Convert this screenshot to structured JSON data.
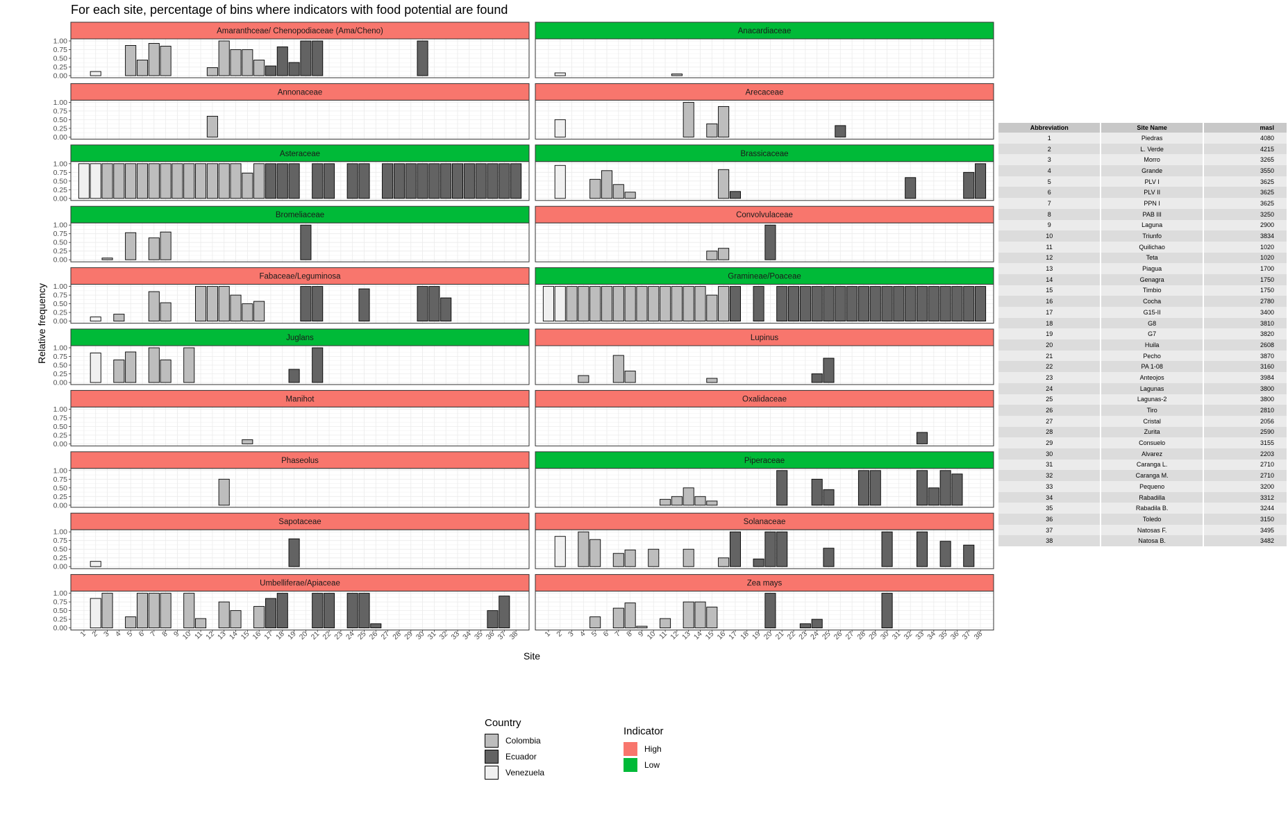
{
  "chart_data": {
    "type": "bar",
    "title": "For each site, percentage of bins where indicators with food potential are found",
    "xlabel": "Site",
    "ylabel": "Relative frequency",
    "ylim": [
      0,
      1
    ],
    "y_ticks": [
      "0.00",
      "0.25",
      "0.50",
      "0.75",
      "1.00"
    ],
    "categories": [
      "1",
      "2",
      "3",
      "4",
      "5",
      "6",
      "7",
      "8",
      "9",
      "10",
      "11",
      "12",
      "13",
      "14",
      "15",
      "16",
      "17",
      "18",
      "19",
      "20",
      "21",
      "22",
      "23",
      "24",
      "25",
      "26",
      "27",
      "28",
      "29",
      "30",
      "31",
      "32",
      "33",
      "34",
      "35",
      "36",
      "37",
      "38"
    ],
    "site_country": [
      "V",
      "V",
      "C",
      "C",
      "C",
      "C",
      "C",
      "C",
      "C",
      "C",
      "C",
      "C",
      "C",
      "C",
      "C",
      "C",
      "E",
      "E",
      "E",
      "E",
      "E",
      "E",
      "E",
      "E",
      "E",
      "E",
      "E",
      "E",
      "E",
      "E",
      "E",
      "E",
      "E",
      "E",
      "E",
      "E",
      "E",
      "E"
    ],
    "country_colors": {
      "C": "#bdbdbd",
      "E": "#636363",
      "V": "#f0f0f0"
    },
    "indicator_colors": {
      "High": "#f8766d",
      "Low": "#00ba38"
    },
    "facets": [
      {
        "name": "Amaranthceae/ Chenopodiaceae (Ama/Cheno)",
        "indicator": "High",
        "values": [
          0,
          0.12,
          0,
          0,
          0.87,
          0.45,
          0.93,
          0.85,
          0,
          0,
          0,
          0.23,
          1,
          0.75,
          0.75,
          0.45,
          0.28,
          0.83,
          0.38,
          1,
          1,
          0,
          0,
          0,
          0,
          0,
          0,
          0,
          0,
          1,
          0,
          0,
          0,
          0,
          0,
          0,
          0,
          0
        ]
      },
      {
        "name": "Anacardiaceae",
        "indicator": "Low",
        "values": [
          0,
          0.08,
          0,
          0,
          0,
          0,
          0,
          0,
          0,
          0,
          0,
          0.05,
          0,
          0,
          0,
          0,
          0,
          0,
          0,
          0,
          0,
          0,
          0,
          0,
          0,
          0,
          0,
          0,
          0,
          0,
          0,
          0,
          0,
          0,
          0,
          0,
          0,
          0
        ]
      },
      {
        "name": "Annonaceae",
        "indicator": "High",
        "values": [
          0,
          0,
          0,
          0,
          0,
          0,
          0,
          0,
          0,
          0,
          0,
          0.6,
          0,
          0,
          0,
          0,
          0,
          0,
          0,
          0,
          0,
          0,
          0,
          0,
          0,
          0,
          0,
          0,
          0,
          0,
          0,
          0,
          0,
          0,
          0,
          0,
          0,
          0
        ]
      },
      {
        "name": "Arecaceae",
        "indicator": "High",
        "values": [
          0,
          0.5,
          0,
          0,
          0,
          0,
          0,
          0,
          0,
          0,
          0,
          0,
          1,
          0,
          0.38,
          0.88,
          0,
          0,
          0,
          0,
          0,
          0,
          0,
          0,
          0,
          0.33,
          0,
          0,
          0,
          0,
          0,
          0,
          0,
          0,
          0,
          0,
          0,
          0
        ]
      },
      {
        "name": "Asteraceae",
        "indicator": "Low",
        "values": [
          1,
          1,
          1,
          1,
          1,
          1,
          1,
          1,
          1,
          1,
          1,
          1,
          1,
          1,
          0.73,
          1,
          1,
          1,
          1,
          0,
          1,
          1,
          0,
          1,
          1,
          0,
          1,
          1,
          1,
          1,
          1,
          1,
          1,
          1,
          1,
          1,
          1,
          1
        ]
      },
      {
        "name": "Brassicaceae",
        "indicator": "Low",
        "values": [
          0,
          0.95,
          0,
          0,
          0.55,
          0.8,
          0.4,
          0.18,
          0,
          0,
          0,
          0,
          0,
          0,
          0,
          0.83,
          0.2,
          0,
          0,
          0,
          0,
          0,
          0,
          0,
          0,
          0,
          0,
          0,
          0,
          0,
          0,
          0.6,
          0,
          0,
          0,
          0,
          0.75,
          1
        ]
      },
      {
        "name": "Bromeliaceae",
        "indicator": "Low",
        "values": [
          0,
          0,
          0.05,
          0,
          0.78,
          0,
          0.63,
          0.8,
          0,
          0,
          0,
          0,
          0,
          0,
          0,
          0,
          0,
          0,
          0,
          1,
          0,
          0,
          0,
          0,
          0,
          0,
          0,
          0,
          0,
          0,
          0,
          0,
          0,
          0,
          0,
          0,
          0,
          0
        ]
      },
      {
        "name": "Convolvulaceae",
        "indicator": "High",
        "values": [
          0,
          0,
          0,
          0,
          0,
          0,
          0,
          0,
          0,
          0,
          0,
          0,
          0,
          0,
          0.25,
          0.33,
          0,
          0,
          0,
          1,
          0,
          0,
          0,
          0,
          0,
          0,
          0,
          0,
          0,
          0,
          0,
          0,
          0,
          0,
          0,
          0,
          0,
          0
        ]
      },
      {
        "name": "Fabaceae/Leguminosa",
        "indicator": "High",
        "values": [
          0,
          0.12,
          0,
          0.2,
          0,
          0,
          0.85,
          0.53,
          0,
          0,
          1,
          1,
          1,
          0.75,
          0.5,
          0.57,
          0,
          0,
          0,
          1,
          1,
          0,
          0,
          0,
          0.93,
          0,
          0,
          0,
          0,
          1,
          1,
          0.67,
          0,
          0,
          0,
          0,
          0,
          0
        ]
      },
      {
        "name": "Gramineae/Poaceae",
        "indicator": "Low",
        "values": [
          1,
          1,
          1,
          1,
          1,
          1,
          1,
          1,
          1,
          1,
          1,
          1,
          1,
          1,
          0.75,
          1,
          1,
          0,
          1,
          0,
          1,
          1,
          1,
          1,
          1,
          1,
          1,
          1,
          1,
          1,
          1,
          1,
          1,
          1,
          1,
          1,
          1,
          1
        ]
      },
      {
        "name": "Juglans",
        "indicator": "Low",
        "values": [
          0,
          0.85,
          0,
          0.65,
          0.88,
          0,
          1,
          0.65,
          0,
          1,
          0,
          0,
          0,
          0,
          0,
          0,
          0,
          0,
          0.38,
          0,
          1,
          0,
          0,
          0,
          0,
          0,
          0,
          0,
          0,
          0,
          0,
          0,
          0,
          0,
          0,
          0,
          0,
          0
        ]
      },
      {
        "name": "Lupinus",
        "indicator": "High",
        "values": [
          0,
          0,
          0,
          0.2,
          0,
          0,
          0.78,
          0.33,
          0,
          0,
          0,
          0,
          0,
          0,
          0.12,
          0,
          0,
          0,
          0,
          0,
          0,
          0,
          0,
          0.25,
          0.7,
          0,
          0,
          0,
          0,
          0,
          0,
          0,
          0,
          0,
          0,
          0,
          0,
          0
        ]
      },
      {
        "name": "Manihot",
        "indicator": "High",
        "values": [
          0,
          0,
          0,
          0,
          0,
          0,
          0,
          0,
          0,
          0,
          0,
          0,
          0,
          0,
          0.12,
          0,
          0,
          0,
          0,
          0,
          0,
          0,
          0,
          0,
          0,
          0,
          0,
          0,
          0,
          0,
          0,
          0,
          0,
          0,
          0,
          0,
          0,
          0
        ]
      },
      {
        "name": "Oxalidaceae",
        "indicator": "High",
        "values": [
          0,
          0,
          0,
          0,
          0,
          0,
          0,
          0,
          0,
          0,
          0,
          0,
          0,
          0,
          0,
          0,
          0,
          0,
          0,
          0,
          0,
          0,
          0,
          0,
          0,
          0,
          0,
          0,
          0,
          0,
          0,
          0,
          0.33,
          0,
          0,
          0,
          0,
          0
        ]
      },
      {
        "name": "Phaseolus",
        "indicator": "High",
        "values": [
          0,
          0,
          0,
          0,
          0,
          0,
          0,
          0,
          0,
          0,
          0,
          0,
          0.75,
          0,
          0,
          0,
          0,
          0,
          0,
          0,
          0,
          0,
          0,
          0,
          0,
          0,
          0,
          0,
          0,
          0,
          0,
          0,
          0,
          0,
          0,
          0,
          0,
          0
        ]
      },
      {
        "name": "Piperaceae",
        "indicator": "Low",
        "values": [
          0,
          0,
          0,
          0,
          0,
          0,
          0,
          0,
          0,
          0,
          0.17,
          0.25,
          0.5,
          0.25,
          0.12,
          0,
          0,
          0,
          0,
          0,
          1,
          0,
          0,
          0.75,
          0.45,
          0,
          0,
          1,
          1,
          0,
          0,
          0,
          1,
          0.5,
          1,
          0.9,
          0,
          0
        ]
      },
      {
        "name": "Sapotaceae",
        "indicator": "High",
        "values": [
          0,
          0.15,
          0,
          0,
          0,
          0,
          0,
          0,
          0,
          0,
          0,
          0,
          0,
          0,
          0,
          0,
          0,
          0,
          0.8,
          0,
          0,
          0,
          0,
          0,
          0,
          0,
          0,
          0,
          0,
          0,
          0,
          0,
          0,
          0,
          0,
          0,
          0,
          0
        ]
      },
      {
        "name": "Solanaceae",
        "indicator": "High",
        "values": [
          0,
          0.87,
          0,
          1,
          0.78,
          0,
          0.38,
          0.48,
          0,
          0.5,
          0,
          0,
          0.5,
          0,
          0,
          0.25,
          1,
          0,
          0.22,
          1,
          1,
          0,
          0,
          0,
          0.53,
          0,
          0,
          0,
          0,
          1,
          0,
          0,
          1,
          0,
          0.73,
          0,
          0.62,
          0
        ]
      },
      {
        "name": "Umbelliferae/Apiaceae",
        "indicator": "High",
        "values": [
          0,
          0.85,
          1,
          0,
          0.32,
          1,
          1,
          1,
          0,
          1,
          0.27,
          0,
          0.75,
          0.5,
          0,
          0.62,
          0.85,
          1,
          0,
          0,
          1,
          1,
          0,
          1,
          1,
          0.12,
          0,
          0,
          0,
          0,
          0,
          0,
          0,
          0,
          0,
          0.5,
          0.92,
          0
        ]
      },
      {
        "name": "Zea mays",
        "indicator": "High",
        "values": [
          0,
          0,
          0,
          0,
          0.32,
          0,
          0.57,
          0.72,
          0.05,
          0,
          0.27,
          0,
          0.75,
          0.75,
          0.6,
          0,
          0,
          0,
          0,
          1,
          0,
          0,
          0.12,
          0.25,
          0,
          0,
          0,
          0,
          0,
          1,
          0,
          0,
          0,
          0,
          0,
          0,
          0,
          0
        ]
      }
    ],
    "legend_country": {
      "title": "Country",
      "entries": [
        {
          "label": "Colombia",
          "color": "#bdbdbd"
        },
        {
          "label": "Ecuador",
          "color": "#636363"
        },
        {
          "label": "Venezuela",
          "color": "#f0f0f0"
        }
      ]
    },
    "legend_indicator": {
      "title": "Indicator",
      "entries": [
        {
          "label": "High",
          "color": "#f8766d"
        },
        {
          "label": "Low",
          "color": "#00ba38"
        }
      ]
    }
  },
  "site_table": {
    "headers": [
      "Abbreviation",
      "Site Name",
      "masl"
    ],
    "rows": [
      [
        "1",
        "Piedras",
        "4080"
      ],
      [
        "2",
        "L. Verde",
        "4215"
      ],
      [
        "3",
        "Morro",
        "3265"
      ],
      [
        "4",
        "Grande",
        "3550"
      ],
      [
        "5",
        "PLV I",
        "3625"
      ],
      [
        "6",
        "PLV II",
        "3625"
      ],
      [
        "7",
        "PPN I",
        "3625"
      ],
      [
        "8",
        "PAB III",
        "3250"
      ],
      [
        "9",
        "Laguna",
        "2900"
      ],
      [
        "10",
        "Triunfo",
        "3834"
      ],
      [
        "11",
        "Quilichao",
        "1020"
      ],
      [
        "12",
        "Teta",
        "1020"
      ],
      [
        "13",
        "Piagua",
        "1700"
      ],
      [
        "14",
        "Genagra",
        "1750"
      ],
      [
        "15",
        "Timbio",
        "1750"
      ],
      [
        "16",
        "Cocha",
        "2780"
      ],
      [
        "17",
        "G15-II",
        "3400"
      ],
      [
        "18",
        "G8",
        "3810"
      ],
      [
        "19",
        "G7",
        "3820"
      ],
      [
        "20",
        "Huila",
        "2608"
      ],
      [
        "21",
        "Pecho",
        "3870"
      ],
      [
        "22",
        "PA 1-08",
        "3160"
      ],
      [
        "23",
        "Anteojos",
        "3984"
      ],
      [
        "24",
        "Lagunas",
        "3800"
      ],
      [
        "25",
        "Lagunas-2",
        "3800"
      ],
      [
        "26",
        "Tiro",
        "2810"
      ],
      [
        "27",
        "Cristal",
        "2056"
      ],
      [
        "28",
        "Zurita",
        "2590"
      ],
      [
        "29",
        "Consuelo",
        "3155"
      ],
      [
        "30",
        "Alvarez",
        "2203"
      ],
      [
        "31",
        "Caranga L.",
        "2710"
      ],
      [
        "32",
        "Caranga M.",
        "2710"
      ],
      [
        "33",
        "Pequeno",
        "3200"
      ],
      [
        "34",
        "Rabadilla",
        "3312"
      ],
      [
        "35",
        "Rabadila B.",
        "3244"
      ],
      [
        "36",
        "Toledo",
        "3150"
      ],
      [
        "37",
        "Natosas F.",
        "3495"
      ],
      [
        "38",
        "Natosa B.",
        "3482"
      ]
    ]
  }
}
